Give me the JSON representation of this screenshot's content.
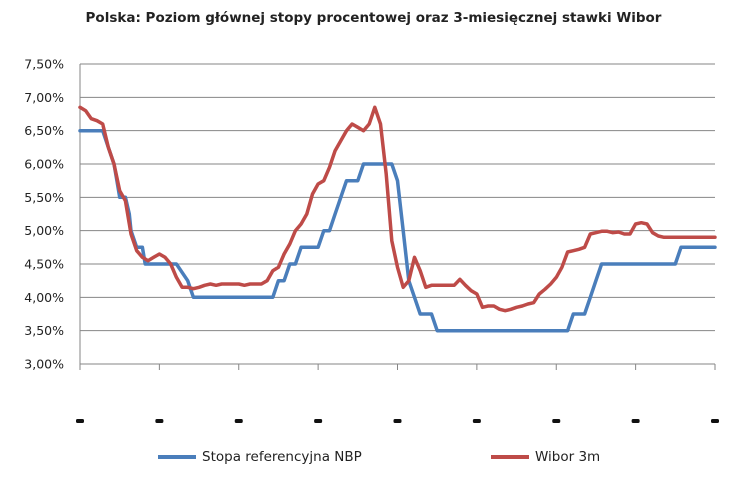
{
  "colors": {
    "nbp": "#4A7EBB",
    "wibor": "#BE4B48",
    "grid": "#868686",
    "axis": "#868686"
  },
  "chart_data": {
    "type": "line",
    "title": "Polska: Poziom głównej stopy procentowej oraz 3-miesięcznej stawki Wibor",
    "xlabel": "",
    "ylabel": "",
    "ylim": [
      3.0,
      7.5
    ],
    "ytick_labels": [
      "3,00%",
      "3,50%",
      "4,00%",
      "4,50%",
      "5,00%",
      "5,50%",
      "6,00%",
      "6,50%",
      "7,00%",
      "7,50%"
    ],
    "x_tick_count": 9,
    "grid": "horizontal",
    "legend": "bottom",
    "series": [
      {
        "name": "Stopa referencyjna NBP",
        "color": "#4A7EBB",
        "points": [
          [
            0,
            6.5
          ],
          [
            4,
            6.5
          ],
          [
            5,
            6.25
          ],
          [
            6,
            6.0
          ],
          [
            6.5,
            5.75
          ],
          [
            7,
            5.5
          ],
          [
            8,
            5.5
          ],
          [
            8.7,
            5.25
          ],
          [
            9,
            5.0
          ],
          [
            10,
            4.75
          ],
          [
            11,
            4.75
          ],
          [
            11.5,
            4.5
          ],
          [
            13,
            4.5
          ],
          [
            14,
            4.5
          ],
          [
            14.5,
            4.5
          ],
          [
            15,
            4.5
          ],
          [
            16,
            4.5
          ],
          [
            16.5,
            4.5
          ],
          [
            17,
            4.5
          ],
          [
            19,
            4.25
          ],
          [
            20,
            4.0
          ],
          [
            27,
            4.0
          ],
          [
            30,
            4.0
          ],
          [
            33,
            4.0
          ],
          [
            34,
            4.0
          ],
          [
            35,
            4.25
          ],
          [
            36,
            4.25
          ],
          [
            37,
            4.5
          ],
          [
            38,
            4.5
          ],
          [
            39,
            4.75
          ],
          [
            42,
            4.75
          ],
          [
            43,
            5.0
          ],
          [
            44,
            5.0
          ],
          [
            45,
            5.25
          ],
          [
            46,
            5.5
          ],
          [
            47,
            5.75
          ],
          [
            49,
            5.75
          ],
          [
            50,
            6.0
          ],
          [
            54,
            6.0
          ],
          [
            55,
            6.0
          ],
          [
            56,
            5.75
          ],
          [
            57,
            5.0
          ],
          [
            58,
            4.25
          ],
          [
            59,
            4.0
          ],
          [
            60,
            3.75
          ],
          [
            62,
            3.75
          ],
          [
            63,
            3.5
          ],
          [
            86,
            3.5
          ],
          [
            87,
            3.75
          ],
          [
            89,
            3.75
          ],
          [
            90,
            4.0
          ],
          [
            91,
            4.25
          ],
          [
            92,
            4.5
          ],
          [
            105,
            4.5
          ],
          [
            106,
            4.75
          ],
          [
            112,
            4.75
          ]
        ]
      },
      {
        "name": "Wibor 3m",
        "color": "#BE4B48",
        "points": [
          [
            0,
            6.85
          ],
          [
            1,
            6.8
          ],
          [
            2,
            6.68
          ],
          [
            3,
            6.65
          ],
          [
            4,
            6.6
          ],
          [
            5,
            6.25
          ],
          [
            6,
            6.0
          ],
          [
            7,
            5.6
          ],
          [
            8,
            5.45
          ],
          [
            9,
            4.95
          ],
          [
            10,
            4.7
          ],
          [
            11,
            4.6
          ],
          [
            12,
            4.55
          ],
          [
            13,
            4.6
          ],
          [
            14,
            4.65
          ],
          [
            15,
            4.6
          ],
          [
            16,
            4.5
          ],
          [
            17,
            4.3
          ],
          [
            18,
            4.15
          ],
          [
            19,
            4.15
          ],
          [
            20,
            4.13
          ],
          [
            21,
            4.15
          ],
          [
            22,
            4.18
          ],
          [
            23,
            4.2
          ],
          [
            24,
            4.18
          ],
          [
            25,
            4.2
          ],
          [
            26,
            4.2
          ],
          [
            27,
            4.2
          ],
          [
            28,
            4.2
          ],
          [
            29,
            4.18
          ],
          [
            30,
            4.2
          ],
          [
            31,
            4.2
          ],
          [
            32,
            4.2
          ],
          [
            33,
            4.25
          ],
          [
            34,
            4.4
          ],
          [
            35,
            4.45
          ],
          [
            36,
            4.65
          ],
          [
            37,
            4.8
          ],
          [
            38,
            5.0
          ],
          [
            39,
            5.1
          ],
          [
            40,
            5.25
          ],
          [
            41,
            5.55
          ],
          [
            42,
            5.7
          ],
          [
            43,
            5.75
          ],
          [
            44,
            5.95
          ],
          [
            45,
            6.2
          ],
          [
            46,
            6.35
          ],
          [
            47,
            6.5
          ],
          [
            48,
            6.6
          ],
          [
            49,
            6.55
          ],
          [
            50,
            6.5
          ],
          [
            51,
            6.6
          ],
          [
            52,
            6.85
          ],
          [
            53,
            6.6
          ],
          [
            54,
            5.85
          ],
          [
            55,
            4.85
          ],
          [
            56,
            4.45
          ],
          [
            57,
            4.15
          ],
          [
            58,
            4.25
          ],
          [
            59,
            4.6
          ],
          [
            60,
            4.4
          ],
          [
            61,
            4.15
          ],
          [
            62,
            4.18
          ],
          [
            63,
            4.18
          ],
          [
            64,
            4.18
          ],
          [
            65,
            4.18
          ],
          [
            66,
            4.18
          ],
          [
            67,
            4.27
          ],
          [
            68,
            4.18
          ],
          [
            69,
            4.1
          ],
          [
            70,
            4.05
          ],
          [
            71,
            3.85
          ],
          [
            72,
            3.87
          ],
          [
            73,
            3.87
          ],
          [
            74,
            3.82
          ],
          [
            75,
            3.8
          ],
          [
            76,
            3.82
          ],
          [
            77,
            3.85
          ],
          [
            78,
            3.87
          ],
          [
            79,
            3.9
          ],
          [
            80,
            3.92
          ],
          [
            81,
            4.05
          ],
          [
            82,
            4.12
          ],
          [
            83,
            4.2
          ],
          [
            84,
            4.3
          ],
          [
            85,
            4.45
          ],
          [
            86,
            4.68
          ],
          [
            87,
            4.7
          ],
          [
            88,
            4.72
          ],
          [
            89,
            4.75
          ],
          [
            90,
            4.95
          ],
          [
            91,
            4.97
          ],
          [
            92,
            4.99
          ],
          [
            93,
            4.99
          ],
          [
            94,
            4.97
          ],
          [
            95,
            4.98
          ],
          [
            96,
            4.95
          ],
          [
            97,
            4.95
          ],
          [
            98,
            5.1
          ],
          [
            99,
            5.12
          ],
          [
            100,
            5.1
          ],
          [
            101,
            4.97
          ],
          [
            102,
            4.92
          ],
          [
            103,
            4.9
          ],
          [
            104,
            4.9
          ],
          [
            112,
            4.9
          ]
        ]
      }
    ]
  }
}
